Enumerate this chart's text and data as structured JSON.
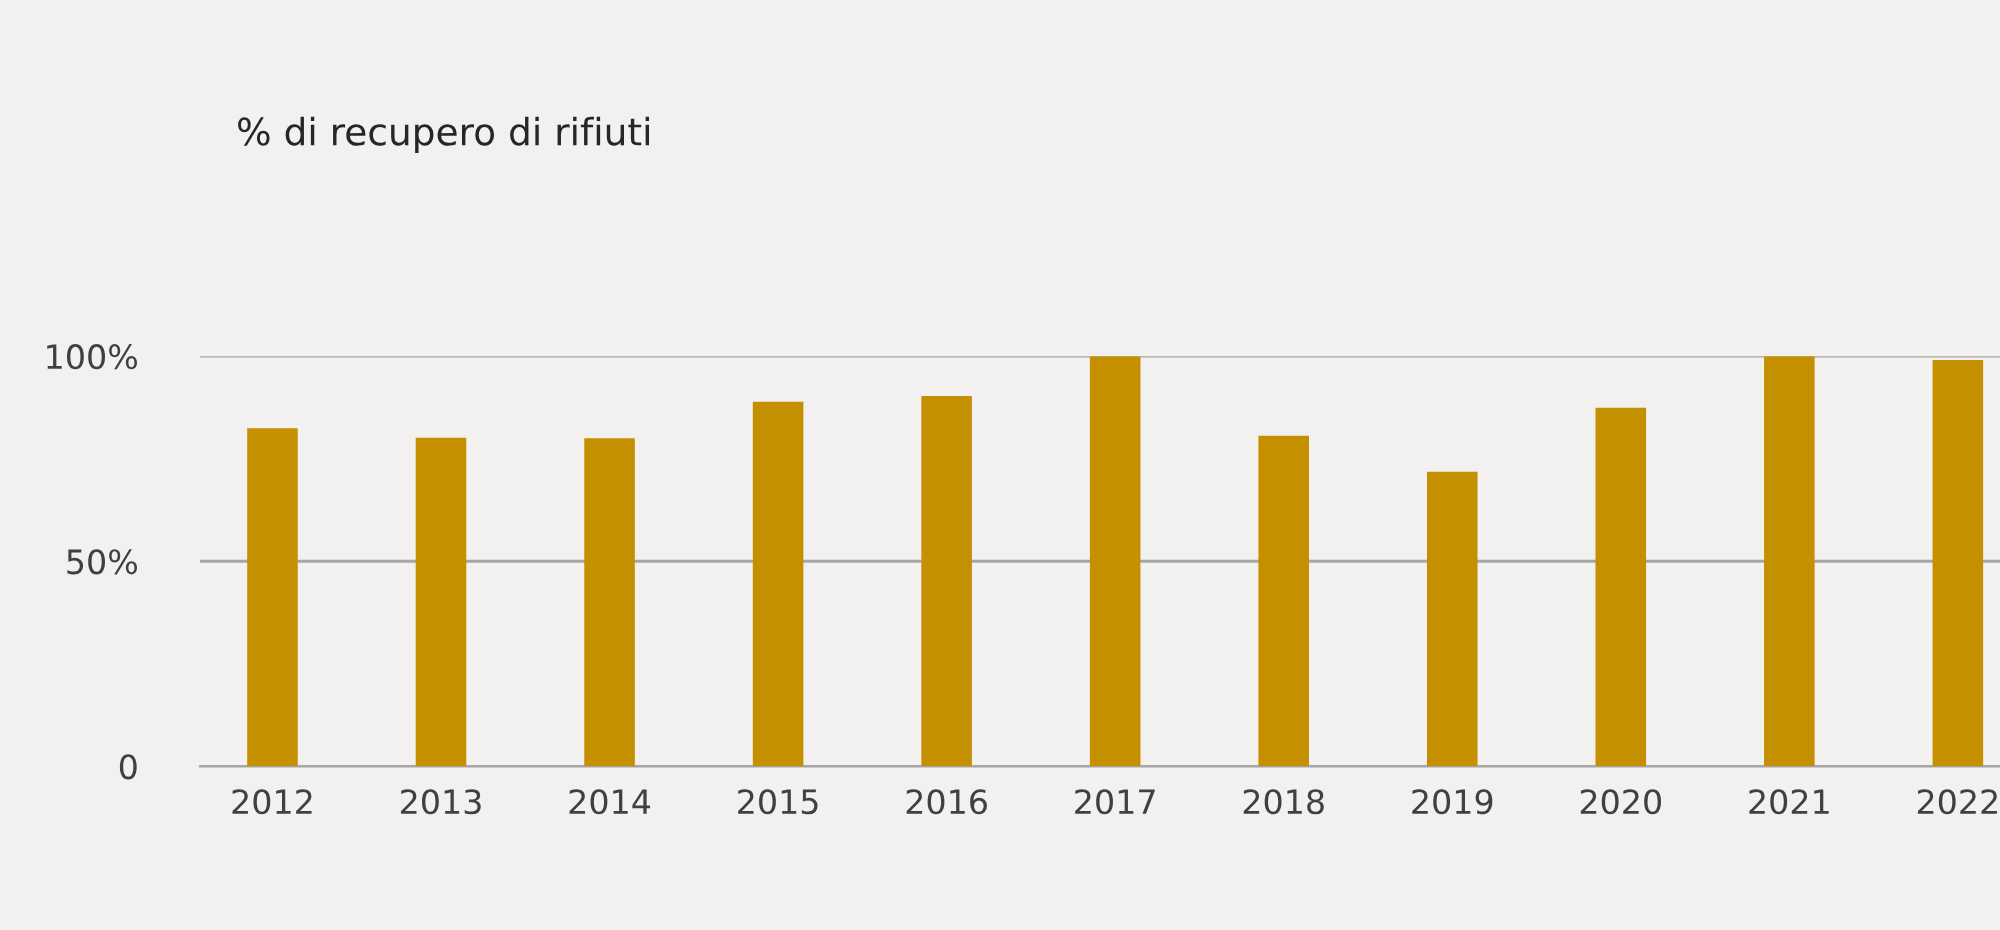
{
  "chart_data": {
    "type": "bar",
    "title": "% di recupero di rifiuti",
    "categories": [
      "2012",
      "2013",
      "2014",
      "2015",
      "2016",
      "2017",
      "2018",
      "2019",
      "2020",
      "2021",
      "2022"
    ],
    "values": [
      82.4,
      80.1,
      80.0,
      88.9,
      90.3,
      100,
      80.6,
      71.8,
      87.4,
      100,
      99.1
    ],
    "color": "#c49000",
    "ylim": [
      0,
      100
    ],
    "yticks": [
      0,
      {
        "value": 50,
        "label": "50%"
      },
      {
        "value": 100,
        "label": "100%"
      }
    ],
    "grid": "y"
  }
}
